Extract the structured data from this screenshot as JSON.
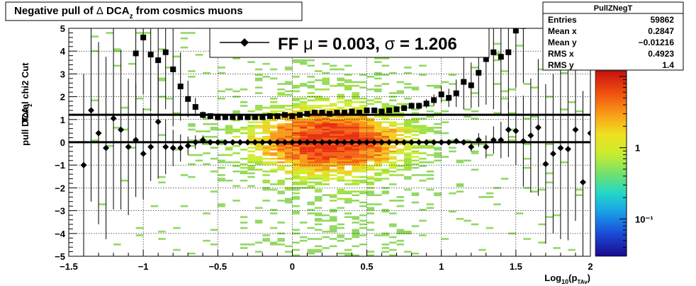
{
  "title": {
    "prefix": "Negative pull of ",
    "delta": "Δ",
    "main": " DCA",
    "sub": "z",
    "suffix": "  from cosmics muons"
  },
  "stats_box": {
    "name": "PullZNegT",
    "rows": [
      {
        "label": "Entries",
        "value": "59862"
      },
      {
        "label": "Mean x",
        "value": "0.2847"
      },
      {
        "label": "Mean y",
        "value": "−0.01216"
      },
      {
        "label": "RMS x",
        "value": "0.4923"
      },
      {
        "label": "RMS y",
        "value": "1.4"
      }
    ]
  },
  "legend": {
    "label_prefix": "FF ",
    "mu": "μ",
    "eq1": " =  0.003, ",
    "sigma": "σ",
    "eq2": " =   1.206"
  },
  "axes": {
    "ylabel_top": "Total chi2 Cut",
    "ylabel_main": "pull DCA",
    "ylabel_sub": "z",
    "xlabel_main": "Log",
    "xlabel_sub1": "10",
    "xlabel_mid": "(p",
    "xlabel_sub2": "TAv",
    "xlabel_end": ")"
  },
  "colorbar": {
    "labels": [
      {
        "text": "1",
        "value": 1
      },
      {
        "text": "10⁻¹",
        "value": 0.1
      }
    ],
    "range": [
      0.03,
      12
    ]
  },
  "chart_data": {
    "type": "scatter",
    "xlim": [
      -1.5,
      2.0
    ],
    "ylim": [
      -5,
      5
    ],
    "xticks": [
      -1.5,
      -1,
      -0.5,
      0,
      0.5,
      1,
      1.5,
      2
    ],
    "xtick_labels": [
      "−1.5",
      "−1",
      "−0.5",
      "0",
      "0.5",
      "1",
      "1.5",
      "2"
    ],
    "yticks": [
      -5,
      -4,
      -3,
      -2,
      -1,
      0,
      1,
      2,
      3,
      4,
      5
    ],
    "ytick_labels": [
      "−5",
      "−4",
      "−3",
      "−2",
      "−1",
      "0",
      "1",
      "2",
      "3",
      "4",
      "5"
    ],
    "grid": true,
    "horizontal_lines": [
      0.003,
      1.206
    ],
    "series": [
      {
        "marker": "square",
        "x": [
          -1.05,
          -1.0,
          -0.95,
          -0.9,
          -0.85,
          -0.8,
          -0.75,
          -0.7,
          -0.65,
          -0.6,
          -0.55,
          -0.5,
          -0.45,
          -0.4,
          -0.35,
          -0.3,
          -0.25,
          -0.2,
          -0.15,
          -0.1,
          -0.05,
          0.0,
          0.05,
          0.1,
          0.15,
          0.2,
          0.25,
          0.3,
          0.35,
          0.4,
          0.45,
          0.5,
          0.55,
          0.6,
          0.65,
          0.7,
          0.75,
          0.8,
          0.85,
          0.9,
          0.95,
          1.0,
          1.05,
          1.1,
          1.15,
          1.2,
          1.25,
          1.3,
          1.35,
          1.4,
          1.45,
          1.5,
          1.55
        ],
        "y": [
          3.9,
          4.6,
          3.85,
          3.6,
          3.95,
          3.2,
          2.45,
          1.9,
          1.55,
          1.2,
          1.15,
          1.1,
          1.1,
          1.1,
          1.1,
          1.1,
          1.1,
          1.1,
          1.15,
          1.15,
          1.2,
          1.15,
          1.2,
          1.25,
          1.3,
          1.3,
          1.25,
          1.3,
          1.3,
          1.35,
          1.3,
          1.4,
          1.4,
          1.35,
          1.4,
          1.45,
          1.5,
          1.6,
          1.6,
          1.7,
          1.85,
          2.1,
          1.95,
          2.15,
          2.65,
          2.5,
          3.05,
          3.65,
          3.95,
          3.75,
          3.95,
          4.9,
          5.1
        ],
        "err": [
          2.5,
          2.5,
          2.5,
          2.5,
          2.5,
          2.5,
          1.5,
          0.8,
          0.4,
          0.15,
          0.12,
          0.1,
          0.1,
          0.1,
          0.1,
          0.1,
          0.1,
          0.1,
          0.1,
          0.1,
          0.1,
          0.1,
          0.1,
          0.1,
          0.1,
          0.1,
          0.1,
          0.1,
          0.1,
          0.1,
          0.1,
          0.1,
          0.1,
          0.1,
          0.1,
          0.12,
          0.12,
          0.15,
          0.15,
          0.2,
          0.25,
          0.35,
          0.4,
          0.6,
          1.2,
          1.0,
          1.5,
          2.0,
          2.5,
          2.5,
          2.5,
          2.5,
          2.5
        ]
      },
      {
        "marker": "diamond",
        "x": [
          -1.4,
          -1.35,
          -1.3,
          -1.25,
          -1.2,
          -1.15,
          -1.1,
          -1.05,
          -1.0,
          -0.95,
          -0.9,
          -0.85,
          -0.8,
          -0.75,
          -0.7,
          -0.65,
          -0.6,
          -0.55,
          -0.5,
          -0.45,
          -0.4,
          -0.35,
          -0.3,
          -0.25,
          -0.2,
          -0.15,
          -0.1,
          -0.05,
          0.0,
          0.05,
          0.1,
          0.15,
          0.2,
          0.25,
          0.3,
          0.35,
          0.4,
          0.45,
          0.5,
          0.55,
          0.6,
          0.65,
          0.7,
          0.75,
          0.8,
          0.85,
          0.9,
          0.95,
          1.0,
          1.05,
          1.1,
          1.15,
          1.2,
          1.25,
          1.3,
          1.35,
          1.4,
          1.45,
          1.5,
          1.55,
          1.6,
          1.65,
          1.7,
          1.75,
          1.8,
          1.85,
          1.9,
          1.95,
          2.0
        ],
        "y": [
          -1.0,
          1.4,
          0.4,
          -0.25,
          1.05,
          0.55,
          -0.2,
          0.1,
          -0.5,
          -0.2,
          0.9,
          -0.2,
          -0.25,
          -0.25,
          -0.15,
          0.0,
          0.1,
          0.0,
          0.0,
          0.0,
          0.0,
          0.0,
          0.0,
          0.0,
          0.0,
          0.0,
          0.0,
          0.0,
          0.0,
          0.0,
          0.0,
          0.0,
          0.0,
          0.0,
          0.0,
          0.0,
          0.0,
          0.0,
          0.0,
          0.0,
          0.0,
          0.0,
          0.0,
          0.0,
          0.0,
          0.0,
          0.0,
          0.0,
          0.0,
          0.0,
          0.05,
          0.0,
          -0.2,
          0.1,
          -0.2,
          0.1,
          0.1,
          0.55,
          0.5,
          0.05,
          0.3,
          0.65,
          -0.95,
          -0.5,
          -0.25,
          -0.3,
          0.55,
          -1.75,
          0.4
        ],
        "err": [
          4.0,
          4.0,
          4.0,
          4.0,
          4.0,
          3.5,
          3.0,
          2.5,
          2.0,
          1.5,
          2.5,
          1.2,
          0.8,
          0.6,
          0.4,
          0.3,
          0.2,
          0.1,
          0.05,
          0.05,
          0.05,
          0.05,
          0.05,
          0.05,
          0.05,
          0.05,
          0.05,
          0.05,
          0.05,
          0.05,
          0.05,
          0.05,
          0.05,
          0.05,
          0.05,
          0.05,
          0.05,
          0.05,
          0.05,
          0.05,
          0.05,
          0.05,
          0.05,
          0.05,
          0.05,
          0.05,
          0.05,
          0.05,
          0.05,
          0.05,
          0.1,
          0.1,
          0.2,
          0.3,
          0.5,
          0.6,
          0.8,
          1.2,
          1.5,
          2.0,
          2.5,
          3.0,
          3.5,
          3.5,
          4.0,
          4.0,
          4.0,
          4.0,
          4.0
        ]
      }
    ]
  }
}
